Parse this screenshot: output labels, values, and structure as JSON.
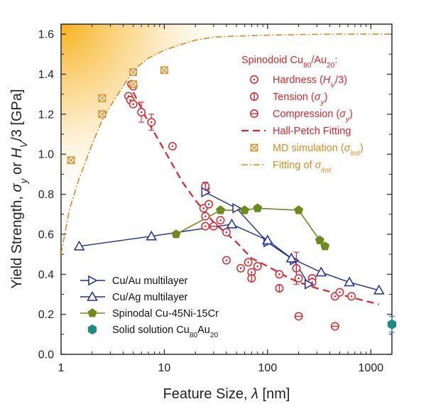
{
  "chart_data": {
    "type": "scatter",
    "x_scale": "log",
    "xlim": [
      1,
      1600
    ],
    "ylim": [
      0,
      1.65
    ],
    "xlabel": "Feature Size, λ  [nm]",
    "xlabel_parts": [
      "Feature Size, ",
      "λ",
      "  [nm]"
    ],
    "ylabel": "Yield Strength, σy or HV/3  [GPa]",
    "ylabel_parts": [
      "Yield Strength, ",
      "σ",
      "y",
      " or ",
      "H",
      "V",
      "/3  [GPa]"
    ],
    "x_ticks": [
      {
        "value": 1,
        "label": "1"
      },
      {
        "value": 10,
        "label": "10"
      },
      {
        "value": 100,
        "label": "100"
      },
      {
        "value": 1000,
        "label": "1000"
      }
    ],
    "y_ticks": [
      {
        "value": 0.0,
        "label": "0.0"
      },
      {
        "value": 0.2,
        "label": "0.2"
      },
      {
        "value": 0.4,
        "label": "0.4"
      },
      {
        "value": 0.6,
        "label": "0.6"
      },
      {
        "value": 0.8,
        "label": "0.8"
      },
      {
        "value": 1.0,
        "label": "1.0"
      },
      {
        "value": 1.2,
        "label": "1.2"
      },
      {
        "value": 1.4,
        "label": "1.4"
      },
      {
        "value": 1.6,
        "label": "1.6"
      }
    ],
    "colors": {
      "red": "#e0242b",
      "orange": "#e08a1e",
      "navy": "#1d2d9c",
      "olive": "#6d8a1c",
      "teal": "#1f8a80",
      "gold": "#f7b21a"
    },
    "legend_top": {
      "title": [
        "Spinodoid Cu",
        "80",
        "/Au",
        "20",
        ":"
      ],
      "entries": [
        {
          "key": "hardness",
          "parts": [
            "Hardness (",
            "H",
            "V",
            "/3)"
          ],
          "marker": "circle-dot"
        },
        {
          "key": "tension",
          "parts": [
            "Tension (",
            "σ",
            "y",
            ")"
          ],
          "marker": "circle-vline"
        },
        {
          "key": "compression",
          "parts": [
            "Compression (",
            "σ",
            "y",
            ")"
          ],
          "marker": "circle-hline"
        },
        {
          "key": "hall_petch",
          "parts": [
            "Hall-Petch Fitting"
          ],
          "marker": "dash"
        },
        {
          "key": "md",
          "parts": [
            "MD simulation (",
            "σ",
            "lmt",
            ")"
          ],
          "marker": "boxed-x"
        },
        {
          "key": "fit_lmt",
          "parts": [
            "Fitting of ",
            "σ",
            "lmt"
          ],
          "marker": "dashdot"
        }
      ]
    },
    "legend_bottom": {
      "entries": [
        {
          "key": "cu_au",
          "parts": [
            "Cu/Au multilayer"
          ],
          "marker": "triangle-right"
        },
        {
          "key": "cu_ag",
          "parts": [
            "Cu/Ag multilayer"
          ],
          "marker": "triangle-up"
        },
        {
          "key": "spinodal",
          "parts": [
            "Spinodal Cu-45Ni-15Cr"
          ],
          "marker": "pentagon"
        },
        {
          "key": "solid",
          "parts": [
            "Solid solution Cu",
            "80",
            "Au",
            "20"
          ],
          "marker": "hexagon"
        }
      ]
    },
    "series": {
      "hardness": {
        "name": "Hardness (HV/3)",
        "points": [
          [
            4.5,
            1.29
          ],
          [
            4.7,
            1.27
          ],
          [
            5.0,
            1.25
          ],
          [
            6.0,
            1.21
          ],
          [
            7.5,
            1.16
          ],
          [
            12,
            1.04
          ],
          [
            24,
            0.73
          ],
          [
            25,
            0.83
          ],
          [
            27,
            0.75
          ],
          [
            25,
            0.69
          ],
          [
            25,
            0.64
          ],
          [
            35,
            0.67
          ],
          [
            40,
            0.61
          ],
          [
            40,
            0.47
          ],
          [
            55,
            0.43
          ],
          [
            65,
            0.46
          ],
          [
            70,
            0.41
          ],
          [
            80,
            0.44
          ],
          [
            130,
            0.4
          ],
          [
            200,
            0.38
          ],
          [
            270,
            0.38
          ],
          [
            270,
            0.36
          ],
          [
            450,
            0.29
          ],
          [
            500,
            0.31
          ],
          [
            650,
            0.29
          ]
        ]
      },
      "tension": {
        "name": "Tension (σy)",
        "points": [
          [
            4.8,
            1.35
          ],
          [
            25,
            0.84
          ],
          [
            70,
            0.38
          ],
          [
            130,
            0.33
          ],
          [
            190,
            0.43
          ]
        ]
      },
      "compression": {
        "name": "Compression (σy)",
        "points": [
          [
            5.0,
            1.34
          ],
          [
            30,
            0.64
          ],
          [
            200,
            0.19
          ],
          [
            450,
            0.14
          ]
        ]
      },
      "hall_petch": {
        "name": "Hall-Petch Fitting",
        "x": [
          5,
          7,
          10,
          15,
          20,
          30,
          50,
          70,
          100,
          150,
          200,
          300,
          500,
          700,
          1000,
          1200
        ],
        "y": [
          1.31,
          1.16,
          1.02,
          0.86,
          0.77,
          0.66,
          0.56,
          0.48,
          0.44,
          0.39,
          0.36,
          0.33,
          0.3,
          0.28,
          0.26,
          0.25
        ]
      },
      "md": {
        "name": "MD simulation (σlmt)",
        "points": [
          [
            1.25,
            0.97
          ],
          [
            2.5,
            1.2
          ],
          [
            2.5,
            1.28
          ],
          [
            5.0,
            1.35
          ],
          [
            5.0,
            1.41
          ],
          [
            10,
            1.42
          ]
        ]
      },
      "fit_lmt": {
        "name": "Fitting of σlmt",
        "x": [
          1,
          1.2,
          1.5,
          2,
          2.5,
          3,
          4,
          5,
          7,
          10,
          15,
          20,
          30,
          50,
          100,
          200,
          500,
          1000,
          1600
        ],
        "y": [
          0.5,
          0.72,
          0.88,
          1.05,
          1.17,
          1.24,
          1.34,
          1.42,
          1.48,
          1.52,
          1.55,
          1.57,
          1.585,
          1.59,
          1.595,
          1.598,
          1.6,
          1.6,
          1.6
        ]
      },
      "cu_au": {
        "name": "Cu/Au multilayer",
        "points": [
          [
            25,
            0.81
          ],
          [
            50,
            0.73
          ],
          [
            100,
            0.56
          ],
          [
            180,
            0.47
          ],
          [
            250,
            0.35
          ]
        ]
      },
      "cu_ag": {
        "name": "Cu/Ag multilayer",
        "points": [
          [
            1.5,
            0.54
          ],
          [
            7.5,
            0.59
          ],
          [
            45,
            0.65
          ],
          [
            100,
            0.57
          ],
          [
            170,
            0.48
          ],
          [
            330,
            0.41
          ],
          [
            620,
            0.36
          ],
          [
            1200,
            0.32
          ]
        ]
      },
      "spinodal": {
        "name": "Spinodal Cu-45Ni-15Cr",
        "points": [
          [
            13,
            0.6
          ],
          [
            35,
            0.72
          ],
          [
            60,
            0.72
          ],
          [
            80,
            0.73
          ],
          [
            200,
            0.72
          ],
          [
            320,
            0.57
          ],
          [
            360,
            0.54
          ]
        ]
      },
      "solid": {
        "name": "Solid solution Cu80Au20",
        "points": [
          [
            1600,
            0.15
          ]
        ]
      }
    }
  }
}
